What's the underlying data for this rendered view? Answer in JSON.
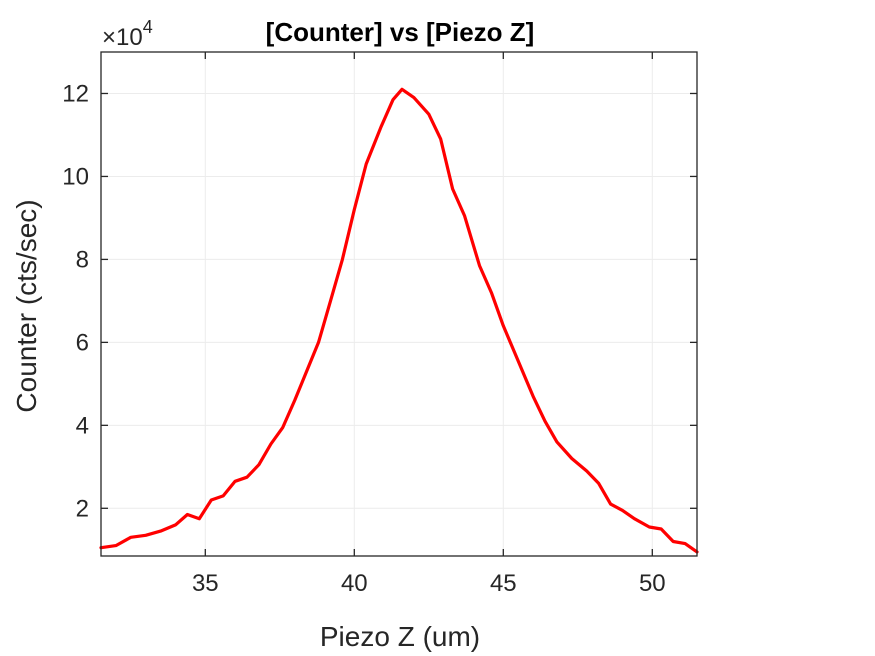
{
  "chart_data": {
    "type": "line",
    "title": "[Counter] vs [Piezo Z]",
    "xlabel": "Piezo Z (um)",
    "ylabel": "Counter (cts/sec)",
    "y_multiplier_label": "×10",
    "y_multiplier_exponent": "4",
    "xlim": [
      31.5,
      51.5
    ],
    "ylim": [
      0.85,
      13.0
    ],
    "y_scale_note": "values in units of 10^4",
    "xticks": [
      35,
      40,
      45,
      50
    ],
    "yticks": [
      2,
      4,
      6,
      8,
      10,
      12
    ],
    "grid": true,
    "series": [
      {
        "color": "#ff0000",
        "x": [
          31.5,
          32.0,
          32.5,
          33.0,
          33.5,
          34.0,
          34.4,
          34.8,
          35.2,
          35.6,
          36.0,
          36.4,
          36.8,
          37.2,
          37.6,
          38.0,
          38.4,
          38.8,
          39.2,
          39.6,
          40.0,
          40.4,
          40.9,
          41.3,
          41.6,
          42.0,
          42.5,
          42.9,
          43.3,
          43.7,
          44.2,
          44.6,
          45.0,
          45.5,
          46.0,
          46.4,
          46.8,
          47.3,
          47.8,
          48.2,
          48.6,
          49.0,
          49.4,
          49.9,
          50.3,
          50.7,
          51.1,
          51.5
        ],
        "values": [
          1.05,
          1.1,
          1.3,
          1.35,
          1.45,
          1.6,
          1.85,
          1.75,
          2.2,
          2.3,
          2.65,
          2.75,
          3.05,
          3.55,
          3.95,
          4.6,
          5.3,
          6.0,
          7.0,
          8.0,
          9.2,
          10.3,
          11.2,
          11.85,
          12.1,
          11.9,
          11.5,
          10.9,
          9.7,
          9.05,
          7.85,
          7.2,
          6.4,
          5.55,
          4.7,
          4.1,
          3.6,
          3.2,
          2.9,
          2.6,
          2.1,
          1.95,
          1.75,
          1.55,
          1.5,
          1.2,
          1.15,
          0.95
        ]
      }
    ]
  }
}
